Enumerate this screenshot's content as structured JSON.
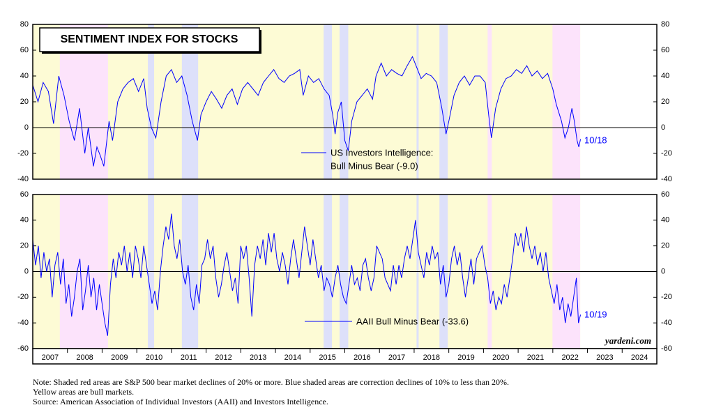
{
  "title": "SENTIMENT INDEX FOR STOCKS",
  "watermark": "yardeni.com",
  "notes": [
    "Note: Shaded red areas are S&P 500 bear market declines of 20% or more.  Blue shaded areas are correction declines of 10% to less than 20%.",
    "Yellow areas are bull markets.",
    "Source: American Association of Individual Investors (AAII) and Investors Intelligence."
  ],
  "year_labels": [
    2007,
    2008,
    2009,
    2010,
    2011,
    2012,
    2013,
    2014,
    2015,
    2016,
    2017,
    2018,
    2019,
    2020,
    2021,
    2022,
    2023,
    2024
  ],
  "bull_color": "#fdfbd5",
  "shaded_regions": [
    {
      "start": 2007.78,
      "end": 2009.17,
      "color": "#fce3fb"
    },
    {
      "start": 2010.32,
      "end": 2010.5,
      "color": "#dde0fa"
    },
    {
      "start": 2011.3,
      "end": 2011.77,
      "color": "#dde0fa"
    },
    {
      "start": 2015.39,
      "end": 2015.63,
      "color": "#dde0fa"
    },
    {
      "start": 2015.85,
      "end": 2016.1,
      "color": "#dde0fa"
    },
    {
      "start": 2018.07,
      "end": 2018.13,
      "color": "#dde0fa"
    },
    {
      "start": 2018.73,
      "end": 2018.97,
      "color": "#dde0fa"
    },
    {
      "start": 2020.12,
      "end": 2020.24,
      "color": "#fce3fb"
    },
    {
      "start": 2021.99,
      "end": 2022.79,
      "color": "#fce3fb"
    }
  ],
  "bull_end": 2022.79,
  "chart_data": [
    {
      "type": "line",
      "xlim": [
        2007,
        2025
      ],
      "ylim": [
        -40,
        80
      ],
      "yticks": [
        -40,
        -20,
        0,
        20,
        40,
        60,
        80
      ],
      "series": [
        {
          "name": [
            "US Investors Intelligence:",
            "Bull Minus Bear (-9.0)"
          ],
          "end_label": "10/18",
          "color": "#0000ff",
          "x": [
            2007.0,
            2007.15,
            2007.3,
            2007.45,
            2007.6,
            2007.75,
            2007.9,
            2008.05,
            2008.2,
            2008.35,
            2008.5,
            2008.6,
            2008.75,
            2008.85,
            2008.95,
            2009.05,
            2009.2,
            2009.3,
            2009.45,
            2009.6,
            2009.75,
            2009.9,
            2010.05,
            2010.2,
            2010.3,
            2010.42,
            2010.55,
            2010.7,
            2010.85,
            2011.0,
            2011.15,
            2011.3,
            2011.45,
            2011.6,
            2011.75,
            2011.85,
            2012.0,
            2012.15,
            2012.3,
            2012.45,
            2012.6,
            2012.75,
            2012.9,
            2013.05,
            2013.2,
            2013.35,
            2013.5,
            2013.65,
            2013.8,
            2013.95,
            2014.1,
            2014.25,
            2014.4,
            2014.55,
            2014.7,
            2014.8,
            2014.95,
            2015.1,
            2015.25,
            2015.4,
            2015.55,
            2015.65,
            2015.72,
            2015.8,
            2015.9,
            2016.0,
            2016.1,
            2016.2,
            2016.35,
            2016.5,
            2016.65,
            2016.8,
            2016.9,
            2017.05,
            2017.2,
            2017.35,
            2017.5,
            2017.65,
            2017.8,
            2017.95,
            2018.1,
            2018.2,
            2018.35,
            2018.5,
            2018.65,
            2018.8,
            2018.92,
            2019.0,
            2019.15,
            2019.3,
            2019.45,
            2019.6,
            2019.75,
            2019.9,
            2020.05,
            2020.15,
            2020.23,
            2020.35,
            2020.5,
            2020.65,
            2020.8,
            2020.95,
            2021.1,
            2021.25,
            2021.4,
            2021.55,
            2021.7,
            2021.85,
            2022.0,
            2022.1,
            2022.25,
            2022.35,
            2022.45,
            2022.55,
            2022.62,
            2022.7,
            2022.75,
            2022.8
          ],
          "values": [
            33,
            20,
            35,
            28,
            3,
            40,
            25,
            5,
            -10,
            15,
            -20,
            0,
            -30,
            -15,
            -22,
            -30,
            5,
            -10,
            20,
            30,
            35,
            38,
            28,
            38,
            15,
            0,
            -8,
            20,
            40,
            45,
            35,
            40,
            25,
            5,
            -10,
            10,
            20,
            28,
            22,
            15,
            25,
            30,
            18,
            30,
            35,
            30,
            25,
            35,
            40,
            45,
            38,
            35,
            40,
            42,
            45,
            25,
            40,
            35,
            38,
            30,
            25,
            10,
            -5,
            12,
            20,
            -10,
            -18,
            5,
            20,
            25,
            30,
            22,
            40,
            50,
            40,
            45,
            42,
            40,
            48,
            55,
            45,
            38,
            42,
            40,
            35,
            15,
            -5,
            5,
            25,
            35,
            40,
            33,
            40,
            40,
            35,
            10,
            -8,
            15,
            30,
            38,
            40,
            45,
            42,
            48,
            40,
            44,
            38,
            42,
            30,
            18,
            5,
            -8,
            0,
            15,
            5,
            -10,
            -15,
            -9
          ]
        }
      ]
    },
    {
      "type": "line",
      "xlim": [
        2007,
        2025
      ],
      "ylim": [
        -60,
        60
      ],
      "yticks": [
        -60,
        -40,
        -20,
        0,
        20,
        40,
        60
      ],
      "series": [
        {
          "name": [
            "AAII Bull Minus Bear (-33.6)"
          ],
          "end_label": "10/19",
          "color": "#0000ff",
          "x": [
            2007.0,
            2007.08,
            2007.16,
            2007.24,
            2007.32,
            2007.4,
            2007.48,
            2007.56,
            2007.64,
            2007.72,
            2007.8,
            2007.88,
            2007.96,
            2008.04,
            2008.12,
            2008.2,
            2008.28,
            2008.36,
            2008.44,
            2008.52,
            2008.6,
            2008.68,
            2008.76,
            2008.84,
            2008.92,
            2009.0,
            2009.08,
            2009.16,
            2009.24,
            2009.32,
            2009.4,
            2009.48,
            2009.56,
            2009.64,
            2009.72,
            2009.8,
            2009.88,
            2009.96,
            2010.04,
            2010.12,
            2010.2,
            2010.28,
            2010.36,
            2010.44,
            2010.52,
            2010.6,
            2010.68,
            2010.76,
            2010.84,
            2010.92,
            2011.0,
            2011.08,
            2011.16,
            2011.24,
            2011.32,
            2011.4,
            2011.48,
            2011.56,
            2011.64,
            2011.72,
            2011.8,
            2011.88,
            2011.96,
            2012.04,
            2012.12,
            2012.2,
            2012.28,
            2012.36,
            2012.44,
            2012.52,
            2012.6,
            2012.68,
            2012.76,
            2012.84,
            2012.92,
            2013.0,
            2013.08,
            2013.16,
            2013.24,
            2013.32,
            2013.4,
            2013.48,
            2013.56,
            2013.64,
            2013.72,
            2013.8,
            2013.88,
            2013.96,
            2014.04,
            2014.12,
            2014.2,
            2014.28,
            2014.36,
            2014.44,
            2014.52,
            2014.6,
            2014.68,
            2014.76,
            2014.84,
            2014.92,
            2015.0,
            2015.08,
            2015.16,
            2015.24,
            2015.32,
            2015.4,
            2015.48,
            2015.56,
            2015.64,
            2015.72,
            2015.8,
            2015.88,
            2015.96,
            2016.04,
            2016.12,
            2016.2,
            2016.28,
            2016.36,
            2016.44,
            2016.52,
            2016.6,
            2016.68,
            2016.76,
            2016.84,
            2016.92,
            2017.0,
            2017.08,
            2017.16,
            2017.24,
            2017.32,
            2017.4,
            2017.48,
            2017.56,
            2017.64,
            2017.72,
            2017.8,
            2017.88,
            2017.96,
            2018.04,
            2018.12,
            2018.2,
            2018.28,
            2018.36,
            2018.44,
            2018.52,
            2018.6,
            2018.68,
            2018.76,
            2018.84,
            2018.92,
            2019.0,
            2019.08,
            2019.16,
            2019.24,
            2019.32,
            2019.4,
            2019.48,
            2019.56,
            2019.64,
            2019.72,
            2019.8,
            2019.88,
            2019.96,
            2020.04,
            2020.12,
            2020.2,
            2020.28,
            2020.36,
            2020.44,
            2020.52,
            2020.6,
            2020.68,
            2020.76,
            2020.84,
            2020.92,
            2021.0,
            2021.08,
            2021.16,
            2021.24,
            2021.32,
            2021.4,
            2021.48,
            2021.56,
            2021.64,
            2021.72,
            2021.8,
            2021.88,
            2021.96,
            2022.04,
            2022.12,
            2022.2,
            2022.28,
            2022.36,
            2022.44,
            2022.52,
            2022.6,
            2022.68,
            2022.74,
            2022.8
          ],
          "values": [
            25,
            5,
            20,
            -5,
            15,
            0,
            10,
            -20,
            5,
            15,
            -10,
            10,
            -25,
            -10,
            -35,
            -20,
            0,
            10,
            -30,
            -15,
            5,
            -20,
            -5,
            -30,
            -10,
            -25,
            -40,
            -50,
            -10,
            10,
            -5,
            15,
            5,
            20,
            0,
            15,
            -5,
            20,
            10,
            -5,
            20,
            5,
            -10,
            -25,
            -15,
            -30,
            0,
            20,
            35,
            25,
            45,
            20,
            10,
            25,
            0,
            -10,
            5,
            -20,
            -30,
            -10,
            -25,
            5,
            10,
            25,
            10,
            20,
            -5,
            -20,
            -10,
            5,
            15,
            0,
            -15,
            -5,
            -25,
            20,
            10,
            20,
            -5,
            -35,
            5,
            20,
            10,
            25,
            5,
            30,
            15,
            30,
            10,
            0,
            15,
            5,
            -10,
            10,
            25,
            10,
            -5,
            15,
            35,
            20,
            5,
            25,
            10,
            -5,
            5,
            -15,
            -5,
            -10,
            -20,
            -5,
            5,
            -10,
            -20,
            -25,
            -10,
            5,
            -10,
            -5,
            -15,
            5,
            10,
            -5,
            -15,
            -5,
            20,
            15,
            10,
            -5,
            -10,
            -15,
            5,
            -10,
            5,
            -5,
            10,
            20,
            10,
            25,
            40,
            15,
            5,
            -5,
            15,
            5,
            20,
            10,
            15,
            -10,
            5,
            -20,
            -10,
            10,
            20,
            5,
            15,
            -5,
            -20,
            -5,
            10,
            -10,
            10,
            15,
            20,
            5,
            -5,
            -25,
            -15,
            -30,
            -20,
            -25,
            -10,
            -20,
            -5,
            10,
            30,
            20,
            30,
            15,
            35,
            20,
            10,
            20,
            5,
            15,
            0,
            15,
            -5,
            -15,
            -25,
            -10,
            -30,
            -20,
            -40,
            -25,
            -35,
            -20,
            -5,
            -40,
            -33.6
          ]
        }
      ]
    }
  ]
}
